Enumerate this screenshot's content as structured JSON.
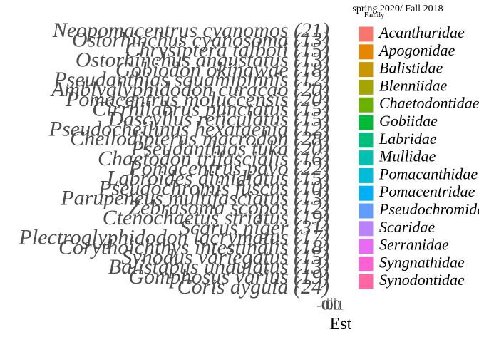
{
  "chart_data": {
    "type": "bar",
    "title": "spring 2020/ Fall 2018",
    "categories": [
      "Neopomacentrus cyanomos (21)",
      "Ostorhinchus cyanosoma (13)",
      "Chrysiptera talboti (15)",
      "Ostorhinchus angustatus (13)",
      "Gobiodon okinawae (18)",
      "Pseudanthias squamipinnis (12)",
      "Amblyglyphidodon curacao (20)",
      "Pomacentrus moluccensis (20)",
      "Cirrhilabrus punctatus (15)",
      "Dascyllus reticulatus (15)",
      "Pseudocheilinus hexataenia (12)",
      "Cheilodipterus macrodon (28)",
      "Pseudanthias tuka (20)",
      "Chaetodon trifascialis (16)",
      "Pomacentrus pavo (22)",
      "Labroides dimidiatus (15)",
      "Pseudochromis fuscus (10)",
      "Parupeneus multifasciatus (13)",
      "Zebrasoma scopas (12)",
      "Ctenochaetus striatus (19)",
      "Scarus niger (31)",
      "Plectroglyphidodon lacrymatus (17)",
      "Corythoichthys intestinalis (18)",
      "Synodus variegatus (15)",
      "Balistapus undulatus (13)",
      "Gomphosus varius (19)",
      "Coris aygula (24)"
    ],
    "xlabel": "Est",
    "xlim": [
      -0.1,
      0.1
    ],
    "xticks": [
      -0.1,
      {
        "value": 0,
        "label": "0.0"
      },
      0.1
    ],
    "legend": {
      "title": "Family",
      "entries": [
        {
          "name": "Acanthuridae",
          "color": "#F8766D"
        },
        {
          "name": "Apogonidae",
          "color": "#E58700"
        },
        {
          "name": "Balistidae",
          "color": "#C99800"
        },
        {
          "name": "Blenniidae",
          "color": "#A3A500"
        },
        {
          "name": "Chaetodontidae",
          "color": "#6BB100"
        },
        {
          "name": "Gobiidae",
          "color": "#00BA38"
        },
        {
          "name": "Labridae",
          "color": "#00BF7D"
        },
        {
          "name": "Mullidae",
          "color": "#00C0AF"
        },
        {
          "name": "Pomacanthidae",
          "color": "#00BCD8"
        },
        {
          "name": "Pomacentridae",
          "color": "#00B0F6"
        },
        {
          "name": "Pseudochromidae",
          "color": "#619CFF"
        },
        {
          "name": "Scaridae",
          "color": "#B983FF"
        },
        {
          "name": "Serranidae",
          "color": "#E76BF3"
        },
        {
          "name": "Syngnathidae",
          "color": "#FD61D1"
        },
        {
          "name": "Synodontidae",
          "color": "#FF67A4"
        }
      ]
    }
  }
}
